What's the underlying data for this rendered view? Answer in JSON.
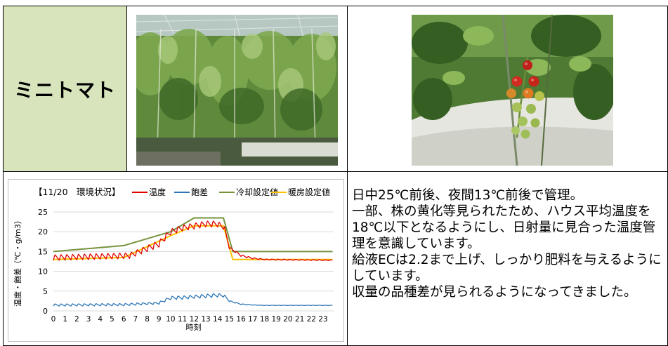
{
  "crop_label": "ミニトマト",
  "photos": [
    {
      "subject": "greenhouse-tomato-rows"
    },
    {
      "subject": "tomato-cluster-closeup"
    }
  ],
  "notes": [
    "日中25℃前後、夜間13℃前後で管理。",
    "一部、株の黄化等見られたため、ハウス平均温度を18℃以下となるようにし、日射量に見合った温度管理を意識しています。",
    "給液ECは2.2まで上げ、しっかり肥料を与えるようにしています。",
    "収量の品種差が見られるようになってきました。"
  ],
  "chart_data": {
    "type": "line",
    "title": "【11/20　環境状況】",
    "xlabel": "時刻",
    "ylabel": "温度・飽差（℃・g/m3）",
    "xlim": [
      0,
      23.9
    ],
    "ylim": [
      0,
      25
    ],
    "x_ticks": [
      0,
      1,
      2,
      3,
      4,
      5,
      6,
      7,
      8,
      9,
      10,
      11,
      12,
      13,
      14,
      15,
      16,
      17,
      18,
      19,
      20,
      21,
      22,
      23
    ],
    "y_ticks": [
      0,
      5,
      10,
      15,
      20,
      25
    ],
    "grid": "horizontal",
    "legend_position": "top",
    "series": [
      {
        "name": "温度",
        "color": "#e00000",
        "kind": "sawtooth",
        "x": [
          0,
          6.5,
          9,
          10,
          11,
          12,
          13,
          14,
          14.6,
          15,
          16,
          17,
          18,
          23.8
        ],
        "y": [
          13.5,
          14,
          17,
          20,
          21,
          21.5,
          22,
          22,
          21,
          16,
          14,
          13.3,
          13,
          12.8
        ],
        "amp": [
          1.5,
          1.5,
          1.8,
          1.6,
          1.5,
          1.6,
          1.6,
          1.6,
          1,
          0.6,
          0.5,
          0.4,
          0.3,
          0.2
        ],
        "period": 0.5
      },
      {
        "name": "飽差",
        "color": "#2e75b6",
        "kind": "sawtooth",
        "x": [
          0,
          6,
          9,
          10,
          11,
          12,
          13,
          14,
          14.6,
          15,
          16,
          17,
          18,
          23.8
        ],
        "y": [
          1.5,
          1.6,
          2,
          3.3,
          3.4,
          3.6,
          3.8,
          4,
          3.8,
          2.5,
          1.7,
          1.5,
          1.4,
          1.4
        ],
        "amp": [
          0.6,
          0.6,
          0.6,
          0.9,
          0.9,
          0.9,
          1,
          1,
          0.6,
          0.3,
          0.2,
          0.1,
          0.1,
          0.1
        ],
        "period": 0.5
      },
      {
        "name": "冷却設定値",
        "color": "#76933c",
        "kind": "line",
        "x": [
          0,
          6,
          10,
          12,
          14.5,
          15.3,
          23.8
        ],
        "y": [
          15,
          16.5,
          20,
          23.5,
          23.5,
          15,
          15
        ]
      },
      {
        "name": "暖房設定値",
        "color": "#ffc000",
        "kind": "line",
        "x": [
          0,
          6,
          10,
          12,
          14.5,
          15.3,
          23.8
        ],
        "y": [
          13,
          13.5,
          19,
          21.5,
          21.5,
          13,
          13
        ]
      }
    ]
  }
}
